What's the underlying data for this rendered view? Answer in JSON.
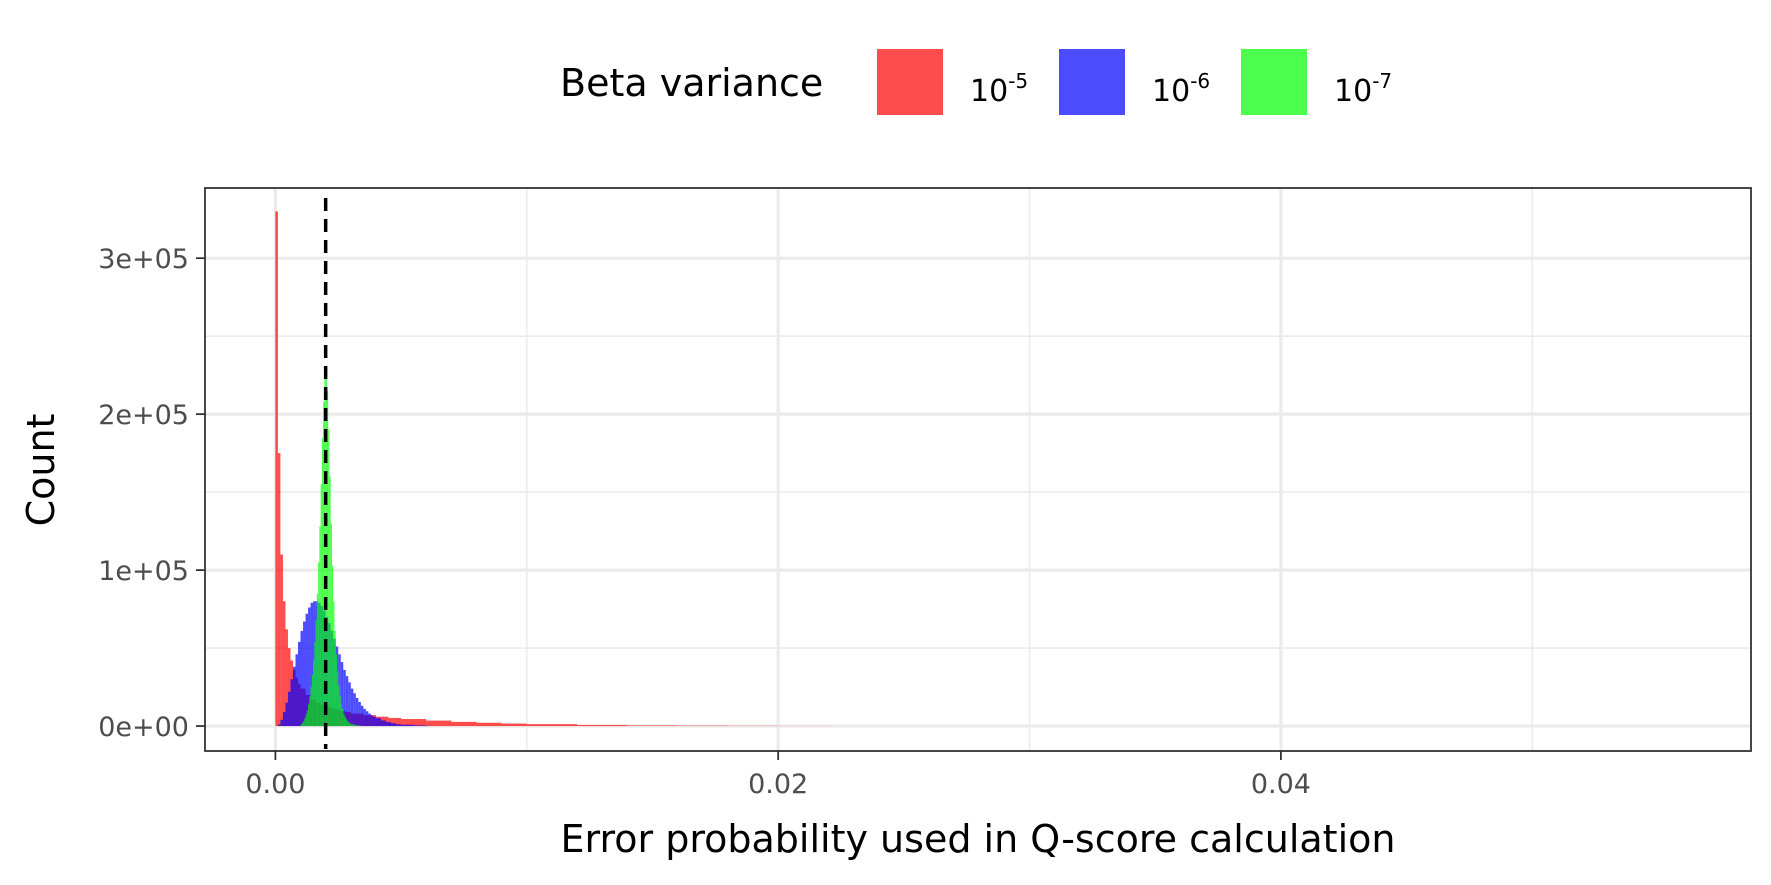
{
  "chart_data": {
    "type": "histogram",
    "xlabel": "Error probability used in Q-score calculation",
    "ylabel": "Count",
    "xlim": [
      -0.0028,
      0.0587
    ],
    "ylim": [
      -16000,
      345000
    ],
    "x_ticks": [
      0.0,
      0.02,
      0.04
    ],
    "x_tick_labels": [
      "0.00",
      "0.02",
      "0.04"
    ],
    "x_minor_ticks": [
      0.01,
      0.03,
      0.05
    ],
    "y_ticks": [
      0,
      100000,
      200000,
      300000
    ],
    "y_tick_labels": [
      "0e+00",
      "1e+05",
      "2e+05",
      "3e+05"
    ],
    "y_minor_ticks": [
      50000,
      150000,
      250000
    ],
    "grid": true,
    "reference_line": {
      "x": 0.002,
      "style": "dashed",
      "color": "#000000"
    },
    "legend": {
      "title": "Beta variance",
      "placement": "top",
      "entries": [
        {
          "base": "10",
          "exp": "-5",
          "color": "#FF0000"
        },
        {
          "base": "10",
          "exp": "-6",
          "color": "#0000FF"
        },
        {
          "base": "10",
          "exp": "-7",
          "color": "#00FF00"
        }
      ]
    },
    "series": [
      {
        "label": "10^-5",
        "color": "#FF0000",
        "opacity": 0.7,
        "bin_width": 0.0001,
        "x": [
          0.0,
          0.0001,
          0.0002,
          0.0003,
          0.0004,
          0.0005,
          0.0006,
          0.0007,
          0.0008,
          0.0009,
          0.001,
          0.0012,
          0.0014,
          0.0016,
          0.0018,
          0.002,
          0.0022,
          0.0024,
          0.0026,
          0.0028,
          0.003,
          0.0035,
          0.004,
          0.0045,
          0.005,
          0.006,
          0.007,
          0.008,
          0.009,
          0.01,
          0.012,
          0.014,
          0.016,
          0.018,
          0.02,
          0.022
        ],
        "values": [
          330000,
          175000,
          110000,
          80000,
          62000,
          50000,
          42000,
          36000,
          31000,
          27000,
          24000,
          20000,
          17000,
          15000,
          13500,
          12500,
          11500,
          10500,
          9500,
          9000,
          8000,
          7000,
          6000,
          5200,
          4500,
          3500,
          2700,
          2100,
          1600,
          1200,
          700,
          400,
          250,
          150,
          80,
          40
        ]
      },
      {
        "label": "10^-6",
        "color": "#0000FF",
        "opacity": 0.7,
        "bin_width": 0.0001,
        "x": [
          0.0001,
          0.0002,
          0.0003,
          0.0004,
          0.0005,
          0.0006,
          0.0007,
          0.0008,
          0.0009,
          0.001,
          0.0011,
          0.0012,
          0.0013,
          0.0014,
          0.0015,
          0.0016,
          0.0017,
          0.0018,
          0.0019,
          0.002,
          0.0021,
          0.0022,
          0.0023,
          0.0024,
          0.0025,
          0.0026,
          0.0027,
          0.0028,
          0.0029,
          0.003,
          0.0031,
          0.0032,
          0.0033,
          0.0034,
          0.0035,
          0.0036,
          0.0037,
          0.0038,
          0.0039,
          0.004,
          0.0042,
          0.0044,
          0.0046,
          0.0048,
          0.005,
          0.0055,
          0.006
        ],
        "values": [
          1000,
          4000,
          9000,
          15000,
          22000,
          30000,
          38000,
          46000,
          54000,
          61000,
          67000,
          72000,
          76000,
          79000,
          80000,
          80000,
          79000,
          77000,
          74000,
          70000,
          66000,
          61000,
          56000,
          51000,
          46000,
          41000,
          36000,
          32000,
          28000,
          24000,
          21000,
          18000,
          15500,
          13000,
          11000,
          9500,
          8000,
          6800,
          5800,
          5000,
          3600,
          2600,
          1800,
          1200,
          800,
          400,
          150
        ]
      },
      {
        "label": "10^-7",
        "color": "#00FF00",
        "opacity": 0.7,
        "bin_width": 5e-05,
        "x": [
          0.001,
          0.00105,
          0.0011,
          0.00115,
          0.0012,
          0.00125,
          0.0013,
          0.00135,
          0.0014,
          0.00145,
          0.0015,
          0.00155,
          0.0016,
          0.00165,
          0.0017,
          0.00175,
          0.0018,
          0.00185,
          0.0019,
          0.00195,
          0.002,
          0.00205,
          0.0021,
          0.00215,
          0.0022,
          0.00225,
          0.0023,
          0.00235,
          0.0024,
          0.00245,
          0.0025,
          0.00255,
          0.0026,
          0.00265,
          0.0027,
          0.00275,
          0.0028,
          0.00285,
          0.0029,
          0.00295,
          0.003,
          0.0031,
          0.0032,
          0.0033,
          0.0034
        ],
        "values": [
          1000,
          2000,
          3000,
          5000,
          7500,
          10000,
          14000,
          19000,
          25000,
          33000,
          42000,
          54000,
          68000,
          85000,
          105000,
          128000,
          155000,
          185000,
          208000,
          225000,
          228000,
          215000,
          190000,
          160000,
          130000,
          103000,
          80000,
          61000,
          46000,
          35000,
          26000,
          19500,
          14500,
          11000,
          8000,
          6000,
          4500,
          3300,
          2400,
          1800,
          1300,
          800,
          500,
          300,
          150
        ]
      }
    ]
  }
}
